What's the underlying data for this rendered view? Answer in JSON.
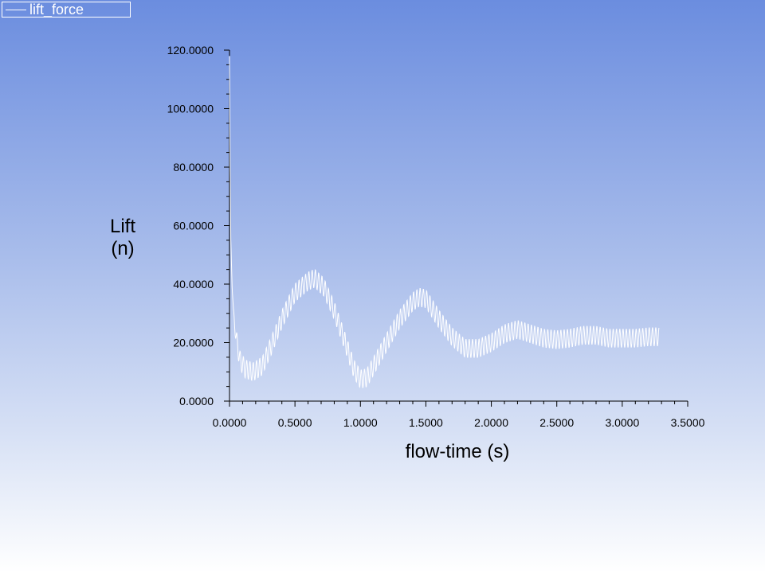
{
  "legend": {
    "entries": [
      "lift_force"
    ]
  },
  "colors": {
    "series": "#ffffff",
    "axis": "#000000",
    "background_top": "#6b8ddf",
    "background_bottom": "#ffffff"
  },
  "chart_data": {
    "type": "line",
    "xlabel": "flow-time (s)",
    "ylabel_line1": "Lift",
    "ylabel_line2": "(n)",
    "xlim": [
      0,
      3.5
    ],
    "ylim": [
      0,
      120
    ],
    "x_ticks": [
      "0.0000",
      "0.5000",
      "1.0000",
      "1.5000",
      "2.0000",
      "2.5000",
      "3.0000",
      "3.5000"
    ],
    "y_ticks": [
      "0.0000",
      "20.0000",
      "40.0000",
      "60.0000",
      "80.0000",
      "100.0000",
      "120.0000"
    ],
    "grid": false,
    "legend_position": "top-left",
    "series": [
      {
        "name": "lift_force",
        "oscillation_amplitude": 3.2,
        "oscillation_period": 0.025,
        "envelope": [
          [
            0.0,
            118
          ],
          [
            0.005,
            80
          ],
          [
            0.01,
            55
          ],
          [
            0.02,
            40
          ],
          [
            0.03,
            30
          ],
          [
            0.05,
            22
          ],
          [
            0.08,
            14
          ],
          [
            0.12,
            11
          ],
          [
            0.18,
            10
          ],
          [
            0.25,
            12
          ],
          [
            0.32,
            19
          ],
          [
            0.4,
            28
          ],
          [
            0.5,
            37
          ],
          [
            0.6,
            41
          ],
          [
            0.65,
            42
          ],
          [
            0.72,
            39
          ],
          [
            0.8,
            31
          ],
          [
            0.9,
            18
          ],
          [
            0.95,
            11
          ],
          [
            1.0,
            7.5
          ],
          [
            1.05,
            8
          ],
          [
            1.1,
            12
          ],
          [
            1.2,
            20
          ],
          [
            1.3,
            28
          ],
          [
            1.4,
            34
          ],
          [
            1.45,
            35.5
          ],
          [
            1.5,
            35
          ],
          [
            1.6,
            28
          ],
          [
            1.7,
            22
          ],
          [
            1.8,
            18
          ],
          [
            1.9,
            18
          ],
          [
            2.0,
            20
          ],
          [
            2.1,
            23
          ],
          [
            2.2,
            24.5
          ],
          [
            2.3,
            23
          ],
          [
            2.4,
            21.5
          ],
          [
            2.5,
            21
          ],
          [
            2.6,
            21.5
          ],
          [
            2.7,
            22.5
          ],
          [
            2.8,
            22.5
          ],
          [
            2.9,
            21.5
          ],
          [
            3.0,
            21.5
          ],
          [
            3.1,
            21.5
          ],
          [
            3.2,
            22
          ],
          [
            3.28,
            22
          ]
        ]
      }
    ]
  }
}
